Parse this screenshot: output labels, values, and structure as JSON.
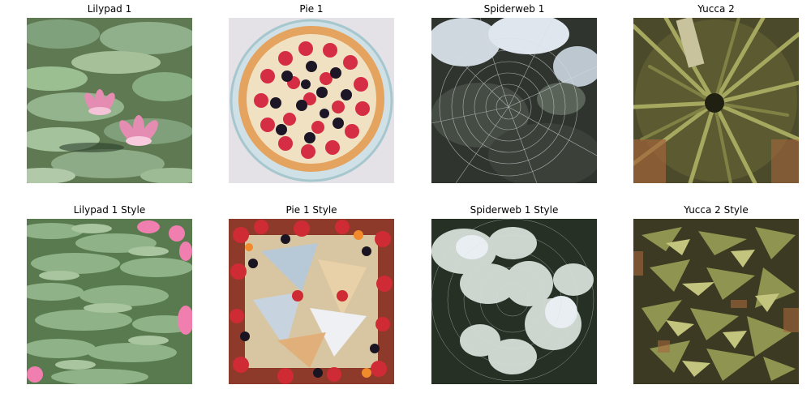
{
  "panels": [
    {
      "title": "Lilypad 1"
    },
    {
      "title": "Pie 1"
    },
    {
      "title": "Spiderweb 1"
    },
    {
      "title": "Yucca 2"
    },
    {
      "title": "Lilypad 1 Style"
    },
    {
      "title": "Pie 1 Style"
    },
    {
      "title": "Spiderweb 1 Style"
    },
    {
      "title": "Yucca 2 Style"
    }
  ]
}
